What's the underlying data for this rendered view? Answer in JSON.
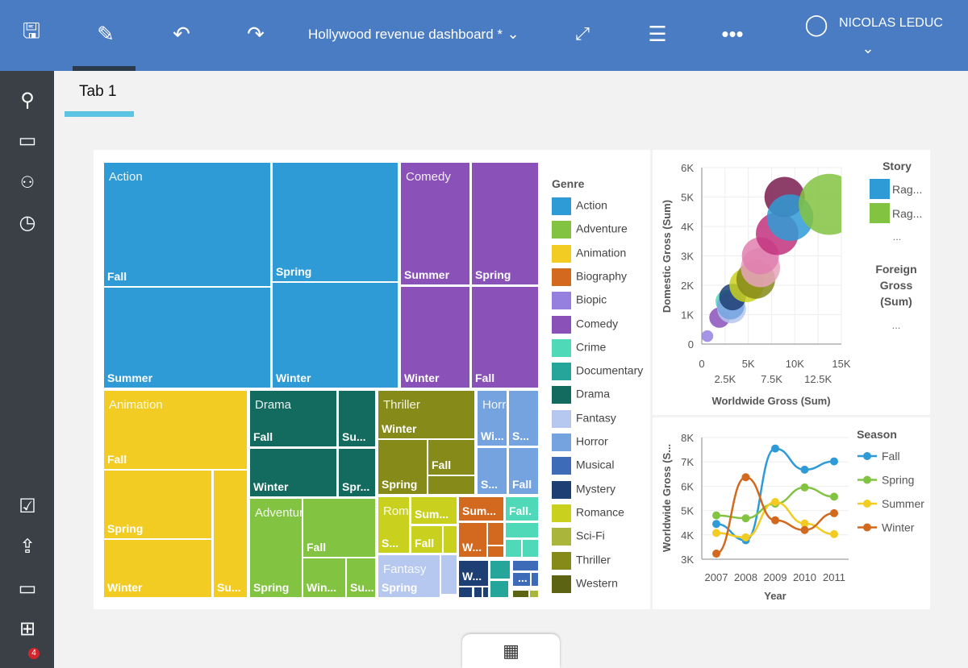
{
  "header": {
    "title": "Hollywood revenue dashboard *",
    "user": "NICOLAS LEDUC",
    "icons": [
      "save-icon",
      "pencil-icon",
      "undo-icon",
      "redo-icon",
      "chevron-down-icon",
      "fullscreen-icon",
      "sliders-icon",
      "more-icon",
      "user-icon"
    ]
  },
  "sidebar": {
    "icons": [
      "search-icon",
      "folder-icon",
      "people-icon",
      "clock-icon",
      "checkmark-user-icon",
      "upload-icon",
      "comment-icon",
      "add-panel-icon"
    ],
    "comment_badge": "4"
  },
  "tabs": [
    {
      "label": "Tab 1",
      "active": true
    }
  ],
  "treemap": {
    "legend_title": "Genre",
    "genres": [
      {
        "name": "Action",
        "color": "#2f9bd6"
      },
      {
        "name": "Adventure",
        "color": "#82c341"
      },
      {
        "name": "Animation",
        "color": "#f2cc23"
      },
      {
        "name": "Biography",
        "color": "#d2691e"
      },
      {
        "name": "Biopic",
        "color": "#9580e0"
      },
      {
        "name": "Comedy",
        "color": "#8a52b8"
      },
      {
        "name": "Crime",
        "color": "#50d9b9"
      },
      {
        "name": "Documentary",
        "color": "#26a69a"
      },
      {
        "name": "Drama",
        "color": "#136b5f"
      },
      {
        "name": "Fantasy",
        "color": "#b6c8ef"
      },
      {
        "name": "Horror",
        "color": "#74a3e0"
      },
      {
        "name": "Musical",
        "color": "#3e6bb8"
      },
      {
        "name": "Mystery",
        "color": "#1e3f73"
      },
      {
        "name": "Romance",
        "color": "#c9d11e"
      },
      {
        "name": "Sci-Fi",
        "color": "#aab53c"
      },
      {
        "name": "Thriller",
        "color": "#868a18"
      },
      {
        "name": "Western",
        "color": "#5c6312"
      }
    ],
    "tiles": [
      {
        "genre": "Action",
        "title": "Action",
        "label": "Fall"
      },
      {
        "genre": "Action",
        "label": "Spring"
      },
      {
        "genre": "Action",
        "label": "Summer"
      },
      {
        "genre": "Action",
        "label": "Winter"
      },
      {
        "genre": "Comedy",
        "title": "Comedy",
        "label": "Summer"
      },
      {
        "genre": "Comedy",
        "label": "Spring"
      },
      {
        "genre": "Comedy",
        "label": "Winter"
      },
      {
        "genre": "Comedy",
        "label": "Fall"
      },
      {
        "genre": "Animation",
        "title": "Animation",
        "label": "Fall"
      },
      {
        "genre": "Animation",
        "label": "Spring"
      },
      {
        "genre": "Animation",
        "label": "Winter"
      },
      {
        "genre": "Animation",
        "label": "Su..."
      },
      {
        "genre": "Drama",
        "title": "Drama",
        "label": "Fall"
      },
      {
        "genre": "Drama",
        "label": "Su..."
      },
      {
        "genre": "Drama",
        "label": "Winter"
      },
      {
        "genre": "Drama",
        "label": "Spr..."
      },
      {
        "genre": "Thriller",
        "title": "Thriller",
        "label": "Winter"
      },
      {
        "genre": "Thriller",
        "label": "Spring"
      },
      {
        "genre": "Thriller",
        "label": "Fall"
      },
      {
        "genre": "Thriller",
        "label": ""
      },
      {
        "genre": "Horror",
        "title": "Horror",
        "label": "Wi..."
      },
      {
        "genre": "Horror",
        "label": "S..."
      },
      {
        "genre": "Horror",
        "label": "S..."
      },
      {
        "genre": "Horror",
        "label": "Fall"
      },
      {
        "genre": "Adventure",
        "title": "Adventure",
        "label": "Spring"
      },
      {
        "genre": "Adventure",
        "label": "Fall"
      },
      {
        "genre": "Adventure",
        "label": "Win..."
      },
      {
        "genre": "Adventure",
        "label": "Su..."
      },
      {
        "genre": "Romance",
        "title": "Romance",
        "label": "S..."
      },
      {
        "genre": "Romance",
        "label": "Sum..."
      },
      {
        "genre": "Romance",
        "label": "Fall"
      },
      {
        "genre": "Romance",
        "label": ""
      },
      {
        "genre": "Biography",
        "label": "Sum..."
      },
      {
        "genre": "Biography",
        "label": "W..."
      },
      {
        "genre": "Biography",
        "label": ""
      },
      {
        "genre": "Biography",
        "label": ""
      },
      {
        "genre": "Crime",
        "label": "Fall."
      },
      {
        "genre": "Crime",
        "label": ""
      },
      {
        "genre": "Crime",
        "label": ""
      },
      {
        "genre": "Crime",
        "label": ""
      },
      {
        "genre": "Fantasy",
        "title": "Fantasy",
        "label": "Spring"
      },
      {
        "genre": "Fantasy",
        "label": ""
      },
      {
        "genre": "Mystery",
        "label": "W..."
      },
      {
        "genre": "Mystery",
        "label": ""
      },
      {
        "genre": "Mystery",
        "label": ""
      },
      {
        "genre": "Mystery",
        "label": ""
      },
      {
        "genre": "Documentary",
        "label": ""
      },
      {
        "genre": "Documentary",
        "label": ""
      },
      {
        "genre": "Musical",
        "label": ""
      },
      {
        "genre": "Musical",
        "label": "..."
      },
      {
        "genre": "Musical",
        "label": ""
      },
      {
        "genre": "Western",
        "label": ""
      },
      {
        "genre": "Sci-Fi",
        "label": ""
      }
    ]
  },
  "chart_data": [
    {
      "type": "scatter",
      "xlabel": "Worldwide Gross (Sum)",
      "ylabel": "Domestic Gross (Sum)",
      "xlim": [
        0,
        15000
      ],
      "ylim": [
        0,
        6000
      ],
      "xticks": [
        "0",
        "2.5K",
        "5K",
        "7.5K",
        "10K",
        "12.5K",
        "15K"
      ],
      "yticks": [
        "0",
        "1K",
        "2K",
        "3K",
        "4K",
        "5K",
        "6K"
      ],
      "grid": true,
      "legend": {
        "title": "Story",
        "items": [
          {
            "name": "Rag...",
            "color": "#2f9bd6"
          },
          {
            "name": "Rag...",
            "color": "#82c341"
          }
        ],
        "more": "...",
        "size_title": "Foreign Gross (Sum)",
        "size_more": "..."
      },
      "points": [
        {
          "x": 600,
          "y": 270,
          "size": 330,
          "color": "#9580e0"
        },
        {
          "x": 1900,
          "y": 900,
          "size": 1000,
          "color": "#8a52b8"
        },
        {
          "x": 2700,
          "y": 1450,
          "size": 1250,
          "color": "#50d9b9"
        },
        {
          "x": 3200,
          "y": 1200,
          "size": 2000,
          "color": "#b6c8ef"
        },
        {
          "x": 3100,
          "y": 1300,
          "size": 1800,
          "color": "#74a3e0"
        },
        {
          "x": 3300,
          "y": 1600,
          "size": 1700,
          "color": "#1e3f73"
        },
        {
          "x": 4800,
          "y": 2000,
          "size": 2800,
          "color": "#c9d11e"
        },
        {
          "x": 5800,
          "y": 2200,
          "size": 3600,
          "color": "#868a18"
        },
        {
          "x": 6300,
          "y": 2600,
          "size": 3700,
          "color": "#e8a5bd"
        },
        {
          "x": 6300,
          "y": 3000,
          "size": 3300,
          "color": "#e07fb0"
        },
        {
          "x": 8100,
          "y": 3750,
          "size": 4350,
          "color": "#c2317f"
        },
        {
          "x": 8900,
          "y": 5000,
          "size": 3900,
          "color": "#7a1d4f"
        },
        {
          "x": 9500,
          "y": 4300,
          "size": 5200,
          "color": "#2f9bd6"
        },
        {
          "x": 13700,
          "y": 4750,
          "size": 8950,
          "color": "#82c341"
        }
      ]
    },
    {
      "type": "line",
      "xlabel": "Year",
      "ylabel": "Worldwide Gross (S...",
      "ylim": [
        3000,
        8000
      ],
      "categories": [
        "2007",
        "2008",
        "2009",
        "2010",
        "2011"
      ],
      "yticks": [
        "3K",
        "4K",
        "5K",
        "6K",
        "7K",
        "8K"
      ],
      "legend": {
        "title": "Season"
      },
      "series": [
        {
          "name": "Fall",
          "color": "#2f9bd6",
          "values": [
            4450,
            3780,
            7550,
            6680,
            7020
          ]
        },
        {
          "name": "Spring",
          "color": "#82c341",
          "values": [
            4800,
            4680,
            5280,
            5950,
            5570
          ]
        },
        {
          "name": "Summer",
          "color": "#f2cc23",
          "values": [
            4080,
            3900,
            5350,
            4470,
            4030
          ]
        },
        {
          "name": "Winter",
          "color": "#d2691e",
          "values": [
            3230,
            6370,
            4600,
            4200,
            4890
          ]
        }
      ]
    }
  ],
  "bottom": {
    "icon": "table-icon"
  }
}
